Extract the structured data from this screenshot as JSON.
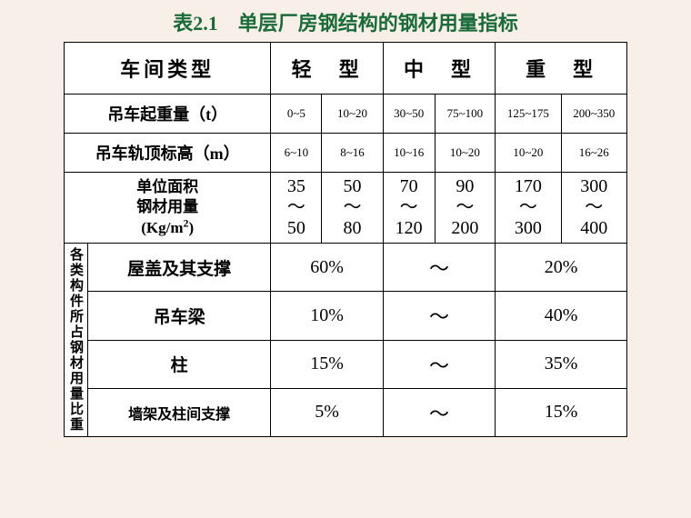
{
  "title": "表2.1　单层厂房钢结构的钢材用量指标",
  "headers": {
    "workshop_type": "车间类型",
    "light": "轻　型",
    "medium": "中　型",
    "heavy": "重　型"
  },
  "rows": {
    "crane_weight": {
      "label": "吊车起重量（t）",
      "vals": [
        "0~5",
        "10~20",
        "30~50",
        "75~100",
        "125~175",
        "200~350"
      ]
    },
    "rail_height": {
      "label": "吊车轨顶标高（m）",
      "vals": [
        "6~10",
        "8~16",
        "10~16",
        "10~20",
        "10~20",
        "16~26"
      ]
    },
    "steel_usage": {
      "label_l1": "单位面积",
      "label_l2": "钢材用量",
      "label_l3": "(Kg/m²)",
      "vals_top": [
        "35",
        "50",
        "70",
        "90",
        "170",
        "300"
      ],
      "tilde": "～",
      "vals_bot": [
        "50",
        "80",
        "120",
        "200",
        "300",
        "400"
      ]
    }
  },
  "components": {
    "side_label": "各类构件所占钢材用量比重",
    "items": [
      {
        "name": "屋盖及其支撑",
        "light": "60%",
        "mid": "～",
        "heavy": "20%"
      },
      {
        "name": "吊车梁",
        "light": "10%",
        "mid": "～",
        "heavy": "40%"
      },
      {
        "name": "柱",
        "light": "15%",
        "mid": "～",
        "heavy": "35%"
      },
      {
        "name": "墙架及柱间支撑",
        "light": "5%",
        "mid": "～",
        "heavy": "15%"
      }
    ]
  },
  "style": {
    "title_color": "#1a6b3a",
    "background_color": "#f8f0e8",
    "table_bg": "#ffffff",
    "border_color": "#000000",
    "text_color": "#000000",
    "header_fontsize": 22,
    "label_fontsize": 18,
    "small_fontsize": 13,
    "pct_fontsize": 20
  }
}
